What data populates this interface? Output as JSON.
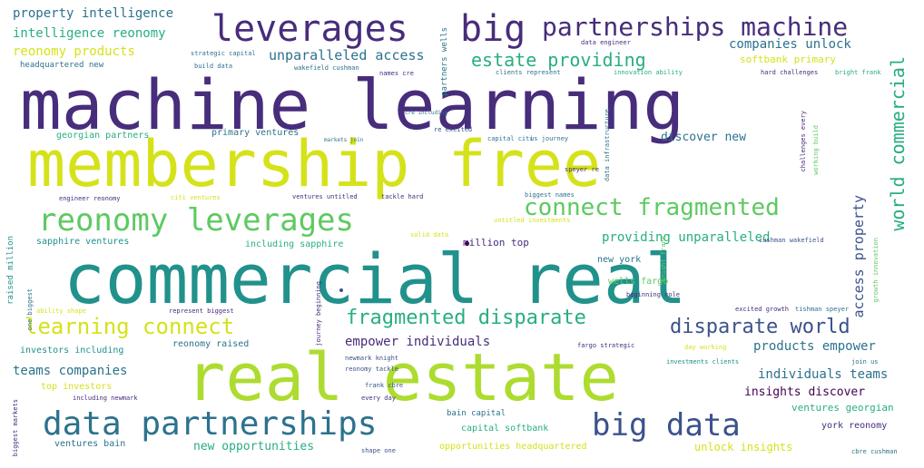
{
  "palette": {
    "dark_purple": "#472d7b",
    "indigo": "#3b528b",
    "blue": "#2c728e",
    "teal": "#21918c",
    "green_teal": "#28ae80",
    "green": "#5ec962",
    "lime": "#addc30",
    "yellow": "#d5e21a",
    "deep_purple": "#440154"
  },
  "words": [
    "machine learning",
    "membership free",
    "commercial real",
    "real estate",
    "data partnerships",
    "reonomy leverages",
    "leverages",
    "big",
    "partnerships machine",
    "big data",
    "learning connect",
    "connect fragmented",
    "fragmented disparate",
    "disparate world",
    "world commercial",
    "estate providing",
    "property intelligence",
    "intelligence reonomy",
    "reonomy products",
    "unparalleled access",
    "companies unlock",
    "softbank primary",
    "providing unparalleled",
    "access property",
    "empower individuals",
    "products empower",
    "individuals teams",
    "teams companies",
    "insights discover",
    "discover new",
    "new opportunities",
    "unlock insights",
    "ventures georgian",
    "georgian partners",
    "primary ventures",
    "sapphire ventures",
    "including sapphire",
    "investors including",
    "reonomy raised",
    "top investors",
    "york reonomy",
    "capital softbank",
    "bain capital",
    "ventures bain",
    "opportunities headquartered",
    "headquartered new",
    "new york",
    "wells fargo",
    "million top",
    "raised million",
    "partners wells",
    "strategic capital",
    "build data",
    "data engineer",
    "names cre",
    "clients represent",
    "innovation ability",
    "hard challenges",
    "bright frank",
    "wakefield cushman",
    "cre including",
    "re excited",
    "capital citi",
    "us journey",
    "markets join",
    "engineer reonomy",
    "ventures untitled",
    "tackle hard",
    "speyer re",
    "biggest names",
    "data infrastructure",
    "challenges every",
    "working build",
    "untitled investments",
    "solid data",
    "cushman wakefield",
    "citi ventures",
    "beginning role",
    "excited growth",
    "tishman speyer",
    "represent biggest",
    "ability shape",
    "fargo strategic",
    "day working",
    "investments clients",
    "join us",
    "newmark knight",
    "reonomy tackle",
    "frank cbre",
    "every day",
    "including newmark",
    "biggest markets",
    "shape one",
    "cbre cushman",
    "journey beginning",
    "one biggest",
    "growth innovation",
    "knight frank"
  ]
}
